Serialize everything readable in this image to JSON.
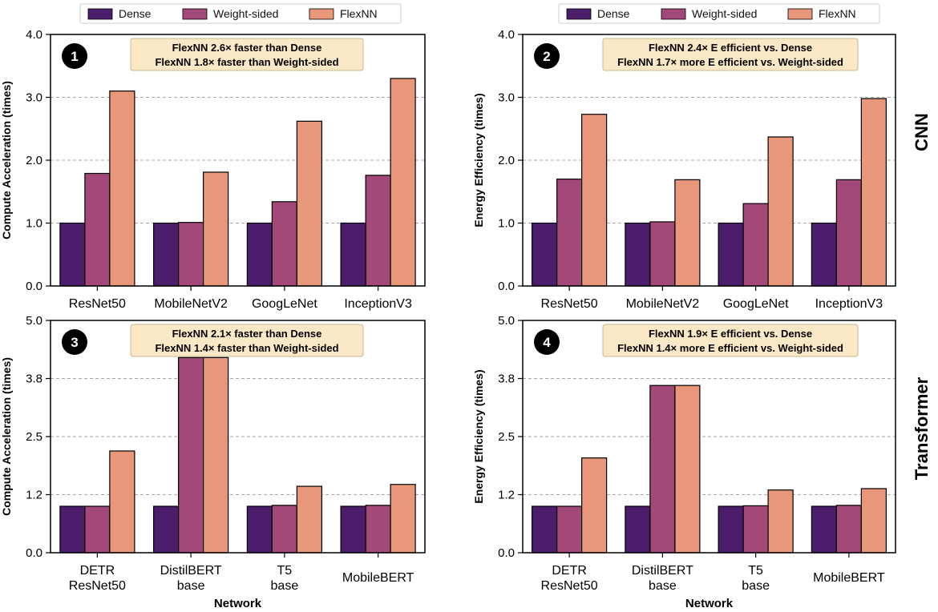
{
  "legend": {
    "entries": [
      {
        "label": "Dense",
        "color": "#4b1d6b"
      },
      {
        "label": "Weight-sided",
        "color": "#a3497a"
      },
      {
        "label": "FlexNN",
        "color": "#e8977a"
      }
    ]
  },
  "row_labels": [
    "CNN",
    "Transformer"
  ],
  "chart_data": [
    {
      "type": "bar",
      "panel_number": "1",
      "ylabel": "Compute Acceleration (times)",
      "xlabel": "",
      "ylim": [
        0,
        4.0
      ],
      "yticks": [
        "0.0",
        "1.0",
        "2.0",
        "3.0",
        "4.0"
      ],
      "ytick_values": [
        0,
        1,
        2,
        3,
        4
      ],
      "categories": [
        [
          "ResNet50"
        ],
        [
          "MobileNetV2"
        ],
        [
          "GoogLeNet"
        ],
        [
          "InceptionV3"
        ]
      ],
      "series": [
        {
          "name": "Dense",
          "values": [
            1.0,
            1.0,
            1.0,
            1.0
          ]
        },
        {
          "name": "Weight-sided",
          "values": [
            1.79,
            1.01,
            1.34,
            1.76
          ]
        },
        {
          "name": "FlexNN",
          "values": [
            3.1,
            1.81,
            2.62,
            3.3
          ]
        }
      ],
      "annotation": [
        "FlexNN 2.6× faster than Dense",
        "FlexNN 1.8× faster than Weight-sided"
      ]
    },
    {
      "type": "bar",
      "panel_number": "2",
      "ylabel": "Energy Efficiency (times)",
      "xlabel": "",
      "ylim": [
        0,
        4.0
      ],
      "yticks": [
        "0.0",
        "1.0",
        "2.0",
        "3.0",
        "4.0"
      ],
      "ytick_values": [
        0,
        1,
        2,
        3,
        4
      ],
      "categories": [
        [
          "ResNet50"
        ],
        [
          "MobileNetV2"
        ],
        [
          "GoogLeNet"
        ],
        [
          "InceptionV3"
        ]
      ],
      "series": [
        {
          "name": "Dense",
          "values": [
            1.0,
            1.0,
            1.0,
            1.0
          ]
        },
        {
          "name": "Weight-sided",
          "values": [
            1.7,
            1.02,
            1.31,
            1.69
          ]
        },
        {
          "name": "FlexNN",
          "values": [
            2.73,
            1.69,
            2.37,
            2.98
          ]
        }
      ],
      "annotation": [
        "FlexNN 2.4× E efficient vs. Dense",
        "FlexNN 1.7× more E efficient vs. Weight-sided"
      ]
    },
    {
      "type": "bar",
      "panel_number": "3",
      "ylabel": "Compute Acceleration (times)",
      "xlabel": "Network",
      "ylim": [
        0,
        5.0
      ],
      "yticks": [
        "0.0",
        "1.2",
        "2.5",
        "3.8",
        "5.0"
      ],
      "ytick_values": [
        0,
        1.25,
        2.5,
        3.75,
        5.0
      ],
      "categories": [
        [
          "DETR",
          "ResNet50"
        ],
        [
          "DistilBERT",
          "base"
        ],
        [
          "T5",
          "base"
        ],
        [
          "MobileBERT"
        ]
      ],
      "series": [
        {
          "name": "Dense",
          "values": [
            1.0,
            1.0,
            1.0,
            1.0
          ]
        },
        {
          "name": "Weight-sided",
          "values": [
            1.0,
            4.2,
            1.02,
            1.02
          ]
        },
        {
          "name": "FlexNN",
          "values": [
            2.19,
            4.2,
            1.43,
            1.47
          ]
        }
      ],
      "annotation": [
        "FlexNN 2.1× faster than Dense",
        "FlexNN 1.4× faster than Weight-sided"
      ]
    },
    {
      "type": "bar",
      "panel_number": "4",
      "ylabel": "Energy Efficiency (times)",
      "xlabel": "Network",
      "ylim": [
        0,
        5.0
      ],
      "yticks": [
        "0.0",
        "1.2",
        "2.5",
        "3.8",
        "5.0"
      ],
      "ytick_values": [
        0,
        1.25,
        2.5,
        3.75,
        5.0
      ],
      "categories": [
        [
          "DETR",
          "ResNet50"
        ],
        [
          "DistilBERT",
          "base"
        ],
        [
          "T5",
          "base"
        ],
        [
          "MobileBERT"
        ]
      ],
      "series": [
        {
          "name": "Dense",
          "values": [
            1.0,
            1.0,
            1.0,
            1.0
          ]
        },
        {
          "name": "Weight-sided",
          "values": [
            1.0,
            3.6,
            1.01,
            1.02
          ]
        },
        {
          "name": "FlexNN",
          "values": [
            2.04,
            3.6,
            1.35,
            1.38
          ]
        }
      ],
      "annotation": [
        "FlexNN 1.9× E efficient vs. Dense",
        "FlexNN 1.4× more E efficient vs. Weight-sided"
      ]
    }
  ]
}
